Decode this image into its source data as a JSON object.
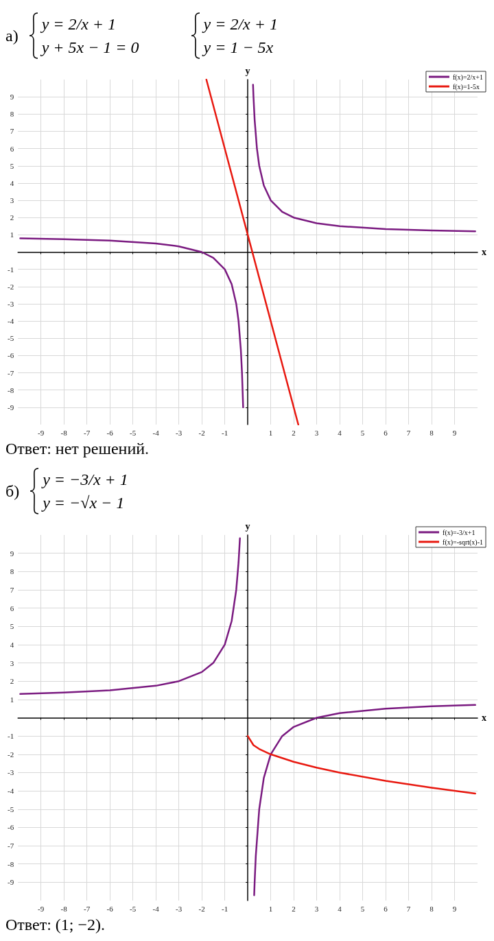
{
  "chart_data": [
    {
      "type": "line",
      "title": "а)",
      "xlabel": "x",
      "ylabel": "y",
      "annotations": [
        "y = 2/x + 1",
        "y + 5x − 1 = 0",
        "y = 2/x + 1",
        "y = 1 − 5x",
        "Ответ: нет решений."
      ],
      "xlim": [
        -10,
        10
      ],
      "ylim": [
        -10,
        10
      ],
      "xticks": [
        -9,
        -8,
        -7,
        -6,
        -5,
        -4,
        -3,
        -2,
        -1,
        1,
        2,
        3,
        4,
        5,
        6,
        7,
        8,
        9
      ],
      "yticks": [
        -9,
        -8,
        -7,
        -6,
        -5,
        -4,
        -3,
        -2,
        -1,
        1,
        2,
        3,
        4,
        5,
        6,
        7,
        8,
        9
      ],
      "grid": true,
      "legend": "top right",
      "marker": "none",
      "line_style": "solid",
      "series": [
        {
          "name": "f(x)=2/x+1",
          "color": "#7a1a80",
          "x": [
            -9.9,
            -8,
            -6,
            -4,
            -3,
            -2,
            -1.5,
            -1,
            -0.7,
            -0.5,
            -0.4,
            -0.3,
            -0.25,
            -0.2,
            0,
            0.23,
            0.25,
            0.3,
            0.4,
            0.5,
            0.7,
            1,
            1.5,
            2,
            3,
            4,
            6,
            8,
            9.9
          ],
          "values": [
            0.8,
            0.75,
            0.67,
            0.5,
            0.33,
            0,
            -0.33,
            -1,
            -1.86,
            -3,
            -4,
            -5.67,
            -7,
            -9,
            null,
            9.7,
            9,
            7.67,
            6,
            5,
            3.86,
            3,
            2.33,
            2,
            1.67,
            1.5,
            1.33,
            1.25,
            1.2
          ]
        },
        {
          "name": "f(x)=1-5x",
          "color": "#e8180f",
          "x": [
            -1.8,
            2.2
          ],
          "values": [
            10,
            -10
          ]
        }
      ]
    },
    {
      "type": "line",
      "title": "б)",
      "xlabel": "x",
      "ylabel": "y",
      "annotations": [
        "y = −3/x + 1",
        "y = −√x − 1",
        "Ответ: (1; −2)."
      ],
      "xlim": [
        -10,
        10
      ],
      "ylim": [
        -10,
        10
      ],
      "xticks": [
        -9,
        -8,
        -7,
        -6,
        -5,
        -4,
        -3,
        -2,
        -1,
        1,
        2,
        3,
        4,
        5,
        6,
        7,
        8,
        9
      ],
      "yticks": [
        -9,
        -8,
        -7,
        -6,
        -5,
        -4,
        -3,
        -2,
        -1,
        1,
        2,
        3,
        4,
        5,
        6,
        7,
        8,
        9
      ],
      "grid": true,
      "legend": "top right",
      "marker": "none",
      "line_style": "solid",
      "series": [
        {
          "name": "f(x)=-3/x+1",
          "color": "#7a1a80",
          "x": [
            -9.9,
            -8,
            -6,
            -4,
            -3,
            -2,
            -1.5,
            -1,
            -0.7,
            -0.5,
            -0.4,
            -0.34,
            0,
            0.28,
            0.3,
            0.35,
            0.5,
            0.7,
            1,
            1.5,
            2,
            3,
            4,
            6,
            8,
            9.9
          ],
          "values": [
            1.3,
            1.38,
            1.5,
            1.75,
            2,
            2.5,
            3,
            4,
            5.29,
            7,
            8.5,
            9.82,
            null,
            -9.71,
            -9,
            -7.57,
            -5,
            -3.29,
            -2,
            -1,
            -0.5,
            0,
            0.25,
            0.5,
            0.63,
            0.7
          ]
        },
        {
          "name": "f(x)=-sqrt(x)-1",
          "color": "#e8180f",
          "x": [
            0,
            0.25,
            0.5,
            1,
            2,
            3,
            4,
            6,
            8,
            9.9
          ],
          "values": [
            -1,
            -1.5,
            -1.71,
            -2,
            -2.41,
            -2.73,
            -3,
            -3.45,
            -3.83,
            -4.15
          ]
        }
      ]
    }
  ]
}
